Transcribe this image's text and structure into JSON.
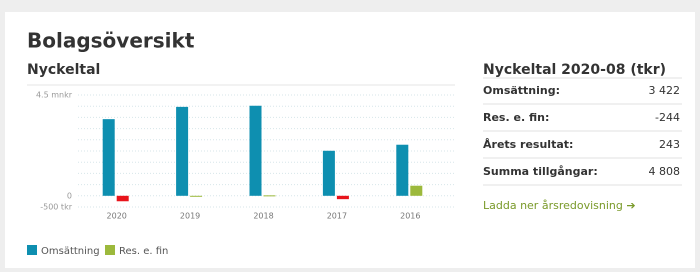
{
  "header": {
    "title": "Bolagsöversikt"
  },
  "chart_data": {
    "type": "bar",
    "title": "Nyckeltal",
    "categories": [
      "2020",
      "2019",
      "2018",
      "2017",
      "2016"
    ],
    "series": [
      {
        "name": "Omsättning",
        "color": "#0e8fb0",
        "values": [
          3422,
          3970,
          4020,
          2010,
          2280
        ]
      },
      {
        "name": "Res. e. fin",
        "color": "#9cb93c",
        "negative_color": "#e8141b",
        "values": [
          -244,
          0,
          20,
          -150,
          450
        ]
      }
    ],
    "ylim": [
      -500,
      4500
    ],
    "yticks": [
      {
        "value": 4500,
        "label": "4.5 mnkr"
      },
      0,
      {
        "value": -500,
        "label": "-500 tkr"
      }
    ],
    "grid": [
      500,
      1000,
      1500,
      2000,
      2500,
      3000,
      3500,
      4000
    ]
  },
  "table": {
    "title": "Nyckeltal 2020-08 (tkr)",
    "rows": [
      [
        "Omsättning:",
        "3 422"
      ],
      [
        "Res. e. fin:",
        "-244"
      ],
      [
        "Årets resultat:",
        "243"
      ],
      [
        "Summa tillgångar:",
        "4 808"
      ]
    ]
  },
  "link": "Ladda ner årsredovisning ➔"
}
